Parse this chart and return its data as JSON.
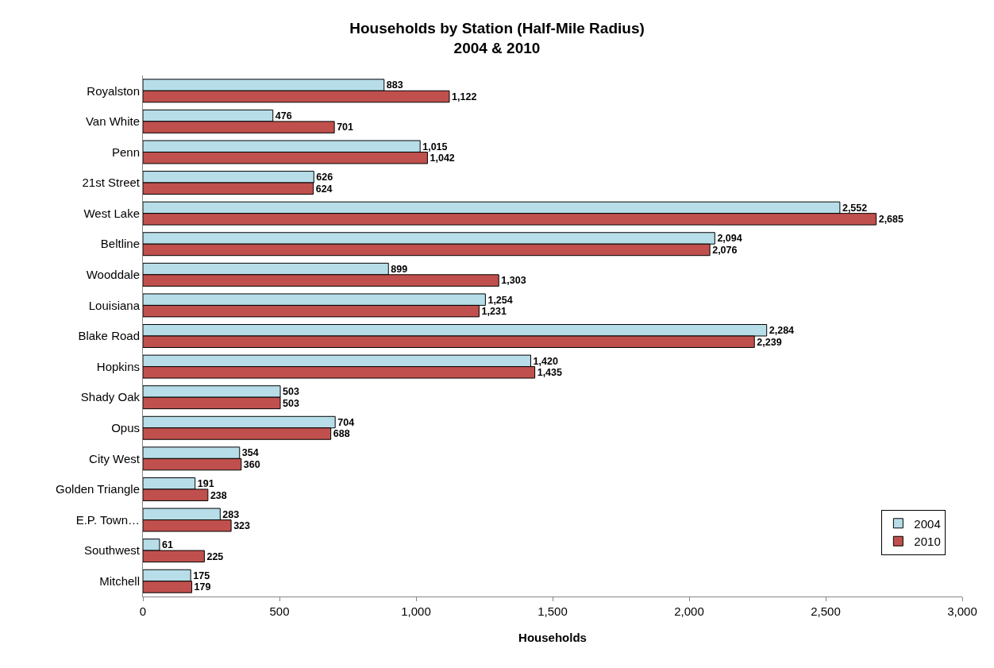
{
  "chart_data": {
    "type": "bar",
    "orientation": "horizontal",
    "title": "Households by Station (Half-Mile Radius)",
    "subtitle": "2004 & 2010",
    "xlabel": "Households",
    "categories": [
      "Royalston",
      "Van White",
      "Penn",
      "21st Street",
      "West Lake",
      "Beltline",
      "Wooddale",
      "Louisiana",
      "Blake Road",
      "Hopkins",
      "Shady Oak",
      "Opus",
      "City West",
      "Golden Triangle",
      "E.P. Town…",
      "Southwest",
      "Mitchell"
    ],
    "series": [
      {
        "name": "2004",
        "color": "#b7dee8",
        "values": [
          883,
          476,
          1015,
          626,
          2552,
          2094,
          899,
          1254,
          2284,
          1420,
          503,
          704,
          354,
          191,
          283,
          61,
          175
        ],
        "value_labels": [
          "883",
          "476",
          "1,015",
          "626",
          "2,552",
          "2,094",
          "899",
          "1,254",
          "2,284",
          "1,420",
          "503",
          "704",
          "354",
          "191",
          "283",
          "61",
          "175"
        ]
      },
      {
        "name": "2010",
        "color": "#c0504d",
        "values": [
          1122,
          701,
          1042,
          624,
          2685,
          2076,
          1303,
          1231,
          2239,
          1435,
          503,
          688,
          360,
          238,
          323,
          225,
          179
        ],
        "value_labels": [
          "1,122",
          "701",
          "1,042",
          "624",
          "2,685",
          "2,076",
          "1,303",
          "1,231",
          "2,239",
          "1,435",
          "503",
          "688",
          "360",
          "238",
          "323",
          "225",
          "179"
        ]
      }
    ],
    "xlim": [
      0,
      3000
    ],
    "xticks": [
      0,
      500,
      {
        "value": 1000,
        "label": "1,000"
      },
      {
        "value": 1500,
        "label": "1,500"
      },
      {
        "value": 2000,
        "label": "2,000"
      },
      {
        "value": 2500,
        "label": "2,500"
      },
      {
        "value": 3000,
        "label": "3,000"
      }
    ],
    "legend": "bottom right"
  }
}
